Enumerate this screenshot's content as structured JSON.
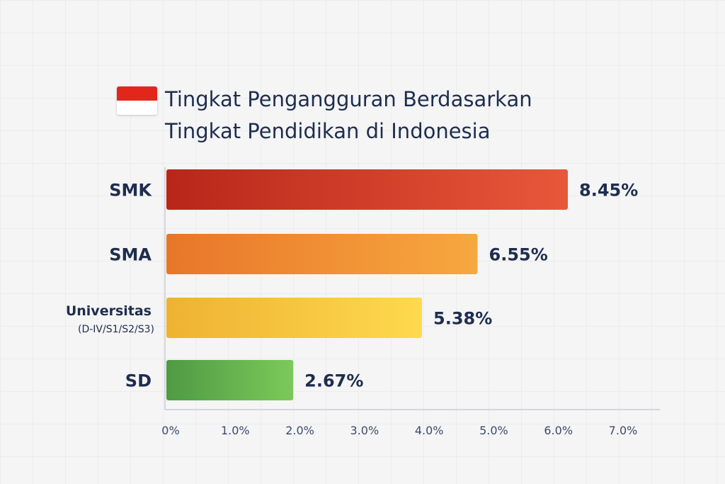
{
  "chart_data": {
    "type": "bar",
    "orientation": "horizontal",
    "title": "Tingkat Pengangguran Berdasarkan Tingkat Pendidikan di Indonesia",
    "title_lines": [
      "Tingkat Pengangguran Berdasarkan",
      "Tingkat Pendidikan di Indonesia"
    ],
    "icon": "indonesia-flag-icon",
    "categories": [
      {
        "label": "SMK",
        "sublabel": ""
      },
      {
        "label": "SMA",
        "sublabel": ""
      },
      {
        "label": "Universitas",
        "sublabel": "(D-IV/S1/S2/S3)"
      },
      {
        "label": "SD",
        "sublabel": ""
      }
    ],
    "values": [
      8.45,
      6.55,
      5.38,
      2.67
    ],
    "data_labels": [
      "8.45%",
      "6.55%",
      "5.38%",
      "2.67%"
    ],
    "colors": [
      [
        "#b8261a",
        "#e9573a"
      ],
      [
        "#e8762a",
        "#f7a83f"
      ],
      [
        "#eeb232",
        "#fed94e"
      ],
      [
        "#4f9a44",
        "#7cc95a"
      ]
    ],
    "x_ticks": [
      "0%",
      "1.0%",
      "2.0%",
      "3.0%",
      "4.0%",
      "5.0%",
      "6.0%",
      "7.0%"
    ],
    "xlim": [
      0,
      7
    ],
    "xlabel": "",
    "ylabel": "",
    "grid": false
  }
}
